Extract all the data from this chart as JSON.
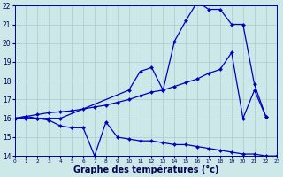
{
  "bg_color": "#cce8e8",
  "grid_color": "#aacccc",
  "line_color": "#0000bb",
  "xlabel": "Graphe des températures (°c)",
  "xmin": 0,
  "xmax": 23,
  "ymin": 14,
  "ymax": 22,
  "xticks": [
    0,
    1,
    2,
    3,
    4,
    5,
    6,
    7,
    8,
    9,
    10,
    11,
    12,
    13,
    14,
    15,
    16,
    17,
    18,
    19,
    20,
    21,
    22,
    23
  ],
  "yticks": [
    14,
    15,
    16,
    17,
    18,
    19,
    20,
    21,
    22
  ],
  "s1_x": [
    0,
    1,
    2,
    3,
    4,
    5,
    6,
    7,
    8,
    9,
    10,
    11,
    12,
    13,
    14,
    15,
    16,
    17,
    18,
    19,
    20,
    21,
    22,
    23
  ],
  "s1_y": [
    16.0,
    16.0,
    16.0,
    15.9,
    15.6,
    15.5,
    15.5,
    14.0,
    15.8,
    15.0,
    14.9,
    14.8,
    14.8,
    14.7,
    14.6,
    14.6,
    14.5,
    14.4,
    14.3,
    14.2,
    14.1,
    14.1,
    14.0,
    14.0
  ],
  "s2_x": [
    0,
    1,
    2,
    3,
    4,
    5,
    6,
    7,
    8,
    9,
    10,
    11,
    12,
    13,
    14,
    15,
    16,
    17,
    18,
    19,
    20,
    21,
    22
  ],
  "s2_y": [
    16.0,
    16.1,
    16.2,
    16.3,
    16.35,
    16.4,
    16.5,
    16.6,
    16.7,
    16.85,
    17.0,
    17.2,
    17.4,
    17.5,
    17.7,
    17.9,
    18.1,
    18.4,
    18.6,
    19.5,
    16.0,
    17.5,
    16.1
  ],
  "s3_x": [
    0,
    1,
    2,
    3,
    4,
    10,
    11,
    12,
    13,
    14,
    15,
    16,
    17,
    18,
    19,
    20,
    21,
    22
  ],
  "s3_y": [
    16.0,
    16.1,
    16.0,
    16.0,
    16.0,
    17.5,
    18.5,
    18.7,
    17.5,
    20.1,
    21.2,
    22.2,
    21.8,
    21.8,
    21.0,
    21.0,
    17.8,
    16.1
  ]
}
